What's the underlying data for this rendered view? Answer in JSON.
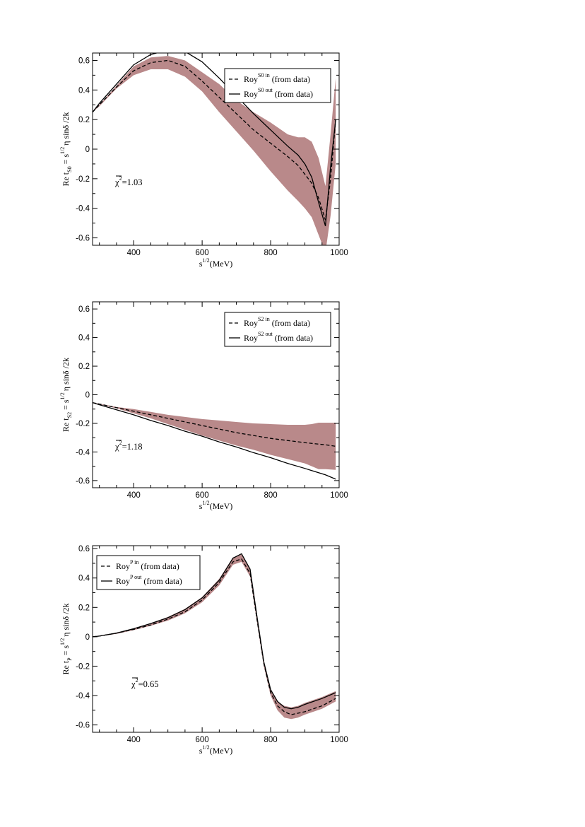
{
  "colors": {
    "band": "#b9898a",
    "line": "#000000"
  },
  "chart_data": [
    {
      "type": "line",
      "panel": "S0",
      "x": [
        280,
        300,
        350,
        400,
        450,
        500,
        550,
        600,
        650,
        700,
        750,
        800,
        850,
        880,
        900,
        920,
        940,
        960,
        975,
        990
      ],
      "series": [
        {
          "name": "Roy^{S0 in} (from data)",
          "style": "dashed",
          "y": [
            0.25,
            0.3,
            0.42,
            0.53,
            0.585,
            0.6,
            0.56,
            0.46,
            0.35,
            0.24,
            0.13,
            0.04,
            -0.05,
            -0.11,
            -0.17,
            -0.23,
            -0.33,
            -0.48,
            -0.2,
            0.2
          ]
        },
        {
          "name": "Roy^{S0 out} (from data)",
          "style": "solid",
          "y": [
            0.25,
            0.31,
            0.44,
            0.57,
            0.64,
            0.67,
            0.66,
            0.59,
            0.48,
            0.36,
            0.24,
            0.13,
            0.02,
            -0.04,
            -0.1,
            -0.19,
            -0.36,
            -0.52,
            -0.12,
            0.2
          ]
        }
      ],
      "band": {
        "upper": [
          0.25,
          0.3,
          0.43,
          0.56,
          0.62,
          0.63,
          0.6,
          0.52,
          0.44,
          0.33,
          0.25,
          0.18,
          0.1,
          0.08,
          0.08,
          0.05,
          -0.06,
          -0.25,
          0.1,
          0.48
        ],
        "lower": [
          0.25,
          0.29,
          0.41,
          0.5,
          0.54,
          0.54,
          0.49,
          0.39,
          0.25,
          0.12,
          -0.01,
          -0.15,
          -0.28,
          -0.35,
          -0.4,
          -0.46,
          -0.58,
          -0.7,
          -0.45,
          -0.1
        ]
      },
      "xlim": [
        280,
        1000
      ],
      "ylim": [
        -0.65,
        0.65
      ],
      "xticks": [
        400,
        600,
        800,
        1000
      ],
      "xtick_labels": [
        "400",
        "600",
        "800",
        "1000"
      ],
      "yticks": [
        0.6,
        0.4,
        0.2,
        0,
        -0.2,
        -0.4,
        -0.6
      ],
      "ytick_labels": [
        "0.6",
        "0.4",
        "0.2",
        "0",
        "-0.2",
        "-0.4",
        "-0.6"
      ],
      "chi2_label": "=1.03",
      "legend_position": "top-right",
      "legend": [
        {
          "pre": "Roy",
          "sup": "S0 in",
          "post": "(from data)",
          "style": "dashed"
        },
        {
          "pre": "Roy",
          "sup": "S0 out",
          "post": "(from data)",
          "style": "solid"
        }
      ],
      "ylabel": {
        "a": "Re t",
        "a_sub": "S0",
        "b": " = s",
        "b_sup": "1/2",
        "c": "η sinδ /2k"
      },
      "xlabel": {
        "a": "s",
        "a_sup": "1/2",
        "b": "(MeV)"
      }
    },
    {
      "type": "line",
      "panel": "S2",
      "x": [
        280,
        300,
        350,
        400,
        450,
        500,
        550,
        600,
        650,
        700,
        750,
        800,
        850,
        900,
        920,
        940,
        960,
        990
      ],
      "series": [
        {
          "name": "Roy^{S2 in} (from data)",
          "style": "dashed",
          "y": [
            -0.055,
            -0.065,
            -0.09,
            -0.115,
            -0.14,
            -0.165,
            -0.19,
            -0.215,
            -0.24,
            -0.265,
            -0.285,
            -0.305,
            -0.32,
            -0.335,
            -0.34,
            -0.345,
            -0.35,
            -0.36
          ]
        },
        {
          "name": "Roy^{S2 out} (from data)",
          "style": "solid",
          "y": [
            -0.055,
            -0.07,
            -0.105,
            -0.14,
            -0.18,
            -0.215,
            -0.255,
            -0.29,
            -0.33,
            -0.365,
            -0.405,
            -0.44,
            -0.48,
            -0.515,
            -0.53,
            -0.545,
            -0.56,
            -0.59
          ]
        }
      ],
      "band": {
        "upper": [
          -0.055,
          -0.062,
          -0.085,
          -0.1,
          -0.12,
          -0.14,
          -0.155,
          -0.17,
          -0.18,
          -0.19,
          -0.2,
          -0.205,
          -0.21,
          -0.21,
          -0.205,
          -0.195,
          -0.195,
          -0.195
        ],
        "lower": [
          -0.055,
          -0.066,
          -0.095,
          -0.13,
          -0.165,
          -0.205,
          -0.245,
          -0.285,
          -0.32,
          -0.355,
          -0.385,
          -0.42,
          -0.45,
          -0.48,
          -0.5,
          -0.52,
          -0.52,
          -0.525
        ]
      },
      "xlim": [
        280,
        1000
      ],
      "ylim": [
        -0.65,
        0.65
      ],
      "xticks": [
        400,
        600,
        800,
        1000
      ],
      "xtick_labels": [
        "400",
        "600",
        "800",
        "1000"
      ],
      "yticks": [
        0.6,
        0.4,
        0.2,
        0,
        -0.2,
        -0.4,
        -0.6
      ],
      "ytick_labels": [
        "0.6",
        "0.4",
        "0.2",
        "0",
        "-0.2",
        "-0.4",
        "-0.6"
      ],
      "chi2_label": "=1.18",
      "legend_position": "top-right",
      "legend": [
        {
          "pre": "Roy",
          "sup": "S2 in",
          "post": "(from data)",
          "style": "dashed"
        },
        {
          "pre": "Roy",
          "sup": "S2 out",
          "post": "(from data)",
          "style": "solid"
        }
      ],
      "ylabel": {
        "a": "Re t",
        "a_sub": "S2",
        "b": " = s",
        "b_sup": "1/2",
        "c": "η sinδ /2k"
      },
      "xlabel": {
        "a": "s",
        "a_sup": "1/2",
        "b": "(MeV)"
      }
    },
    {
      "type": "line",
      "panel": "P",
      "x": [
        280,
        300,
        350,
        400,
        450,
        500,
        550,
        600,
        650,
        690,
        715,
        740,
        760,
        780,
        800,
        820,
        840,
        860,
        880,
        900,
        950,
        990
      ],
      "series": [
        {
          "name": "Roy^{P in} (from data)",
          "style": "dashed",
          "y": [
            0.0,
            0.005,
            0.025,
            0.05,
            0.08,
            0.12,
            0.17,
            0.25,
            0.37,
            0.51,
            0.53,
            0.43,
            0.12,
            -0.18,
            -0.38,
            -0.47,
            -0.51,
            -0.53,
            -0.52,
            -0.51,
            -0.47,
            -0.42
          ]
        },
        {
          "name": "Roy^{P out} (from data)",
          "style": "solid",
          "y": [
            0.0,
            0.005,
            0.025,
            0.055,
            0.09,
            0.13,
            0.185,
            0.265,
            0.385,
            0.535,
            0.565,
            0.46,
            0.14,
            -0.17,
            -0.36,
            -0.44,
            -0.48,
            -0.49,
            -0.48,
            -0.46,
            -0.42,
            -0.38
          ]
        }
      ],
      "band": {
        "upper": [
          0.0,
          0.006,
          0.027,
          0.057,
          0.092,
          0.135,
          0.19,
          0.27,
          0.395,
          0.54,
          0.56,
          0.46,
          0.14,
          -0.16,
          -0.36,
          -0.44,
          -0.47,
          -0.48,
          -0.47,
          -0.45,
          -0.41,
          -0.37
        ],
        "lower": [
          0.0,
          0.003,
          0.02,
          0.045,
          0.075,
          0.11,
          0.16,
          0.235,
          0.35,
          0.49,
          0.51,
          0.41,
          0.1,
          -0.2,
          -0.4,
          -0.5,
          -0.55,
          -0.56,
          -0.55,
          -0.53,
          -0.49,
          -0.44
        ]
      },
      "xlim": [
        280,
        1000
      ],
      "ylim": [
        -0.65,
        0.62
      ],
      "xticks": [
        400,
        600,
        800,
        1000
      ],
      "xtick_labels": [
        "400",
        "600",
        "800",
        "1000"
      ],
      "yticks": [
        0.6,
        0.4,
        0.2,
        0,
        -0.2,
        -0.4,
        -0.6
      ],
      "ytick_labels": [
        "0.6",
        "0.4",
        "0.2",
        "0",
        "-0.2",
        "-0.4",
        "-0.6"
      ],
      "chi2_label": "=0.65",
      "legend_position": "top-left",
      "legend": [
        {
          "pre": "Roy",
          "sup": "P in",
          "post": "(from data)",
          "style": "dashed"
        },
        {
          "pre": "Roy",
          "sup": "P out",
          "post": "(from data)",
          "style": "solid"
        }
      ],
      "ylabel": {
        "a": "Re t",
        "a_sub": "P",
        "b": " = s",
        "b_sup": "1/2",
        "c": "η sinδ /2k"
      },
      "xlabel": {
        "a": "s",
        "a_sup": "1/2",
        "b": "(MeV)"
      }
    }
  ]
}
